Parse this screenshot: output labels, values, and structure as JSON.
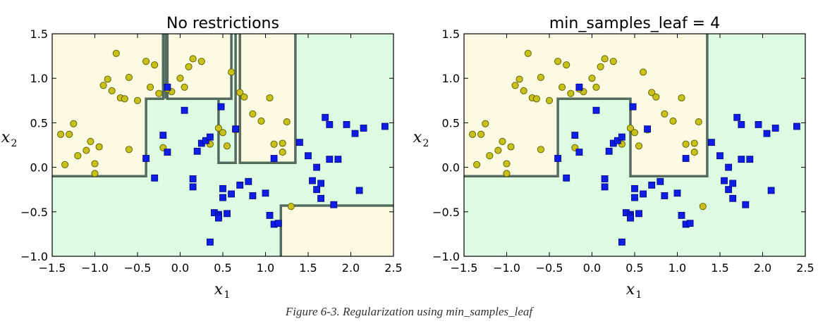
{
  "colors": {
    "region_yellow": "#fbfbe3",
    "region_green": "#dcfbe0",
    "boundary": "#566b60",
    "yellow_point": "#c7c11a",
    "yellow_edge": "#5a5a00",
    "blue_point": "#0f1ee6",
    "blue_edge": "#00007a"
  },
  "caption": "Figure 6-3. Regularization using min_samples_leaf",
  "chart_data": [
    {
      "type": "scatter",
      "title": "No restrictions",
      "xlabel": "x",
      "xlabel_sub": "1",
      "ylabel": "x",
      "ylabel_sub": "2",
      "xlim": [
        -1.5,
        2.5
      ],
      "ylim": [
        -1.0,
        1.5
      ],
      "xticks": [
        "−1.5",
        "−1.0",
        "−0.5",
        "0.0",
        "0.5",
        "1.0",
        "1.5",
        "2.0",
        "2.5"
      ],
      "yticks": [
        "−1.0",
        "−0.5",
        "0.0",
        "0.5",
        "1.0",
        "1.5"
      ],
      "yellow_regions": [
        [
          [
            -1.5,
            -0.1
          ],
          [
            -0.4,
            -0.1
          ],
          [
            -0.4,
            0.77
          ],
          [
            -0.2,
            0.77
          ],
          [
            -0.2,
            1.5
          ],
          [
            -1.5,
            1.5
          ]
        ],
        [
          [
            -0.17,
            1.5
          ],
          [
            -0.15,
            1.5
          ],
          [
            -0.15,
            0.77
          ],
          [
            -0.17,
            0.77
          ]
        ],
        [
          [
            -0.15,
            0.77
          ],
          [
            0.6,
            0.77
          ],
          [
            0.6,
            1.5
          ],
          [
            -0.15,
            1.5
          ]
        ],
        [
          [
            0.65,
            0.05
          ],
          [
            0.7,
            0.05
          ],
          [
            0.7,
            1.5
          ],
          [
            0.65,
            1.5
          ]
        ],
        [
          [
            0.7,
            0.05
          ],
          [
            1.35,
            0.05
          ],
          [
            1.35,
            1.5
          ],
          [
            0.7,
            1.5
          ]
        ],
        [
          [
            1.18,
            -1.0
          ],
          [
            2.5,
            -1.0
          ],
          [
            2.5,
            -0.43
          ],
          [
            1.18,
            -0.43
          ]
        ]
      ],
      "boundary_lines": [
        [
          [
            -1.5,
            -0.1
          ],
          [
            -0.4,
            -0.1
          ],
          [
            -0.4,
            0.77
          ],
          [
            -0.2,
            0.77
          ],
          [
            -0.2,
            1.5
          ]
        ],
        [
          [
            -0.17,
            1.5
          ],
          [
            -0.17,
            0.77
          ]
        ],
        [
          [
            -0.15,
            1.5
          ],
          [
            -0.15,
            0.77
          ],
          [
            0.6,
            0.77
          ],
          [
            0.6,
            1.5
          ]
        ],
        [
          [
            0.45,
            0.77
          ],
          [
            0.45,
            0.05
          ],
          [
            0.65,
            0.05
          ],
          [
            0.65,
            1.5
          ]
        ],
        [
          [
            0.7,
            1.5
          ],
          [
            0.7,
            0.05
          ],
          [
            1.35,
            0.05
          ],
          [
            1.35,
            1.5
          ]
        ],
        [
          [
            1.18,
            -1.0
          ],
          [
            1.18,
            -0.43
          ],
          [
            2.5,
            -0.43
          ]
        ]
      ],
      "series": [
        {
          "marker": "circle",
          "x": [
            -1.4,
            -1.3,
            -1.35,
            -1.25,
            -1.2,
            -1.1,
            -1.05,
            -0.95,
            -0.9,
            -0.85,
            -0.8,
            -0.7,
            -0.6,
            -0.5,
            -0.4,
            -0.35,
            -0.2,
            -0.1,
            -1.0,
            -0.75,
            -0.65,
            -0.3,
            -0.25,
            -0.15,
            0.0,
            0.05,
            0.15,
            0.25,
            0.35,
            0.45,
            0.5,
            0.55,
            0.6,
            0.7,
            0.75,
            0.85,
            0.95,
            1.1,
            1.2,
            1.25,
            1.3,
            1.05,
            -1.0,
            -0.6,
            0.1,
            0.65,
            1.2
          ],
          "y": [
            0.37,
            0.37,
            0.03,
            0.49,
            0.13,
            0.19,
            0.29,
            0.23,
            0.92,
            0.99,
            0.86,
            0.78,
            1.01,
            0.75,
            1.19,
            0.9,
            0.22,
            0.85,
            0.04,
            1.28,
            0.77,
            1.15,
            0.83,
            0.88,
            1.0,
            0.9,
            1.22,
            1.19,
            0.26,
            0.44,
            0.39,
            0.24,
            1.07,
            0.84,
            0.79,
            0.6,
            0.52,
            0.26,
            0.27,
            0.51,
            -0.44,
            0.78,
            -0.07,
            0.2,
            1.13,
            0.42,
            0.17
          ]
        },
        {
          "marker": "square",
          "x": [
            -0.4,
            -0.3,
            -0.2,
            -0.15,
            -0.15,
            0.05,
            0.15,
            0.15,
            0.2,
            0.25,
            0.3,
            0.35,
            0.35,
            0.4,
            0.45,
            0.45,
            0.5,
            0.5,
            0.6,
            0.7,
            0.8,
            0.85,
            1.0,
            1.05,
            1.1,
            1.15,
            1.1,
            1.4,
            1.5,
            1.55,
            1.6,
            1.65,
            1.65,
            1.7,
            1.75,
            1.8,
            1.85,
            1.95,
            2.05,
            2.1,
            2.15,
            2.4,
            1.75,
            1.6,
            0.55,
            0.45,
            0.48,
            0.65
          ],
          "y": [
            0.1,
            -0.12,
            0.36,
            0.9,
            0.17,
            0.64,
            -0.13,
            -0.22,
            0.18,
            0.27,
            0.3,
            0.34,
            -0.84,
            -0.51,
            -0.53,
            -0.55,
            -0.24,
            -0.34,
            -0.3,
            -0.2,
            -0.16,
            -0.32,
            -0.29,
            -0.54,
            -0.64,
            -0.63,
            0.1,
            0.28,
            0.13,
            -0.15,
            -0.25,
            -0.35,
            -0.18,
            0.56,
            0.48,
            -0.42,
            0.09,
            0.48,
            0.38,
            -0.26,
            0.44,
            0.46,
            0.09,
            0.0,
            -0.52,
            -0.57,
            0.68,
            0.43
          ]
        }
      ]
    },
    {
      "type": "scatter",
      "title": "min_samples_leaf = 4",
      "xlabel": "x",
      "xlabel_sub": "1",
      "ylabel": "x",
      "ylabel_sub": "2",
      "xlim": [
        -1.5,
        2.5
      ],
      "ylim": [
        -1.0,
        1.5
      ],
      "xticks": [
        "−1.5",
        "−1.0",
        "−0.5",
        "0.0",
        "0.5",
        "1.0",
        "1.5",
        "2.0",
        "2.5"
      ],
      "yticks": [
        "−1.0",
        "−0.5",
        "0.0",
        "0.5",
        "1.0",
        "1.5"
      ],
      "yellow_regions": [
        [
          [
            -1.5,
            -0.1
          ],
          [
            -0.4,
            -0.1
          ],
          [
            -0.4,
            0.77
          ],
          [
            0.45,
            0.77
          ],
          [
            0.45,
            -0.1
          ],
          [
            1.35,
            -0.1
          ],
          [
            1.35,
            1.5
          ],
          [
            -1.5,
            1.5
          ]
        ]
      ],
      "boundary_lines": [
        [
          [
            -1.5,
            -0.1
          ],
          [
            -0.4,
            -0.1
          ],
          [
            -0.4,
            0.77
          ],
          [
            0.45,
            0.77
          ],
          [
            0.45,
            -0.1
          ],
          [
            1.35,
            -0.1
          ],
          [
            1.35,
            1.5
          ]
        ]
      ],
      "series": [
        {
          "marker": "circle",
          "x": [
            -1.4,
            -1.3,
            -1.35,
            -1.25,
            -1.2,
            -1.1,
            -1.05,
            -0.95,
            -0.9,
            -0.85,
            -0.8,
            -0.7,
            -0.6,
            -0.5,
            -0.4,
            -0.35,
            -0.2,
            -0.1,
            -1.0,
            -0.75,
            -0.65,
            -0.3,
            -0.25,
            -0.15,
            0.0,
            0.05,
            0.15,
            0.25,
            0.35,
            0.45,
            0.5,
            0.55,
            0.6,
            0.7,
            0.75,
            0.85,
            0.95,
            1.1,
            1.2,
            1.25,
            1.3,
            1.05,
            -1.0,
            -0.6,
            0.1,
            0.65,
            1.2
          ],
          "y": [
            0.37,
            0.37,
            0.03,
            0.49,
            0.13,
            0.19,
            0.29,
            0.23,
            0.92,
            0.99,
            0.86,
            0.78,
            1.01,
            0.75,
            1.19,
            0.9,
            0.22,
            0.85,
            0.04,
            1.28,
            0.77,
            1.15,
            0.83,
            0.88,
            1.0,
            0.9,
            1.22,
            1.19,
            0.26,
            0.44,
            0.39,
            0.24,
            1.07,
            0.84,
            0.79,
            0.6,
            0.52,
            0.26,
            0.27,
            0.51,
            -0.44,
            0.78,
            -0.07,
            0.2,
            1.13,
            0.42,
            0.17
          ]
        },
        {
          "marker": "square",
          "x": [
            -0.4,
            -0.3,
            -0.2,
            -0.15,
            -0.15,
            0.05,
            0.15,
            0.15,
            0.2,
            0.25,
            0.3,
            0.35,
            0.35,
            0.4,
            0.45,
            0.45,
            0.5,
            0.5,
            0.6,
            0.7,
            0.8,
            0.85,
            1.0,
            1.05,
            1.1,
            1.15,
            1.1,
            1.4,
            1.5,
            1.55,
            1.6,
            1.65,
            1.65,
            1.7,
            1.75,
            1.8,
            1.85,
            1.95,
            2.05,
            2.1,
            2.15,
            2.4,
            1.75,
            1.6,
            0.55,
            0.45,
            0.48,
            0.65
          ],
          "y": [
            0.1,
            -0.12,
            0.36,
            0.9,
            0.17,
            0.64,
            -0.13,
            -0.22,
            0.18,
            0.27,
            0.3,
            0.34,
            -0.84,
            -0.51,
            -0.53,
            -0.55,
            -0.24,
            -0.34,
            -0.3,
            -0.2,
            -0.16,
            -0.32,
            -0.29,
            -0.54,
            -0.64,
            -0.63,
            0.1,
            0.28,
            0.13,
            -0.15,
            -0.25,
            -0.35,
            -0.18,
            0.56,
            0.48,
            -0.42,
            0.09,
            0.48,
            0.38,
            -0.26,
            0.44,
            0.46,
            0.09,
            0.0,
            -0.52,
            -0.57,
            0.68,
            0.43
          ]
        }
      ]
    }
  ]
}
